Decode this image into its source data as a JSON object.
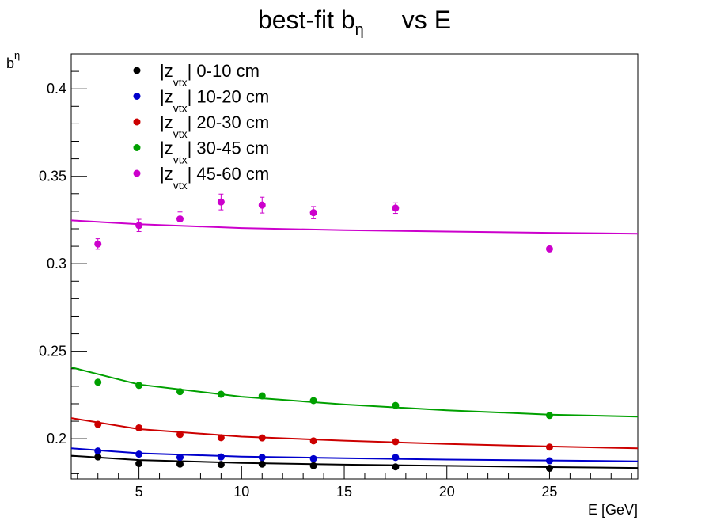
{
  "chart_data": {
    "type": "scatter",
    "title_main": "best-fit  b",
    "title_sub": "η",
    "title_tail": "vs  E",
    "xlabel": "E  [GeV]",
    "ylabel_main": "b",
    "ylabel_sub": "η",
    "xlim": [
      1.7,
      29.3
    ],
    "ylim": [
      0.177,
      0.42
    ],
    "xticks": [
      5,
      10,
      15,
      20,
      25
    ],
    "yticks": [
      0.2,
      0.25,
      0.3,
      0.35,
      0.4
    ],
    "legend_position": "top-left",
    "series": [
      {
        "legend_pre": "|z",
        "legend_sub": "vtx",
        "legend_post": "| 0-10 cm",
        "color": "#000000",
        "x": [
          3,
          5,
          7,
          9,
          11,
          13.5,
          17.5,
          25
        ],
        "y": [
          0.1896,
          0.1858,
          0.1855,
          0.1853,
          0.1855,
          0.1846,
          0.1839,
          0.1831
        ],
        "err": [
          0.0012,
          0.0009,
          0.0009,
          0.0009,
          0.0009,
          0.0009,
          0.0009,
          0.0008
        ],
        "fit": [
          [
            1.7,
            0.1903
          ],
          [
            5,
            0.1878
          ],
          [
            10,
            0.1862
          ],
          [
            15,
            0.1852
          ],
          [
            20,
            0.1845
          ],
          [
            25,
            0.1838
          ],
          [
            29.3,
            0.1833
          ]
        ]
      },
      {
        "legend_pre": "|z",
        "legend_sub": "vtx",
        "legend_post": "| 10-20 cm",
        "color": "#0000cc",
        "x": [
          3,
          5,
          7,
          9,
          11,
          13.5,
          17.5,
          25
        ],
        "y": [
          0.193,
          0.1912,
          0.1894,
          0.1896,
          0.1893,
          0.1886,
          0.1893,
          0.1874
        ],
        "err": [
          0.001,
          0.0009,
          0.0009,
          0.0009,
          0.0009,
          0.0009,
          0.0009,
          0.0008
        ],
        "fit": [
          [
            1.7,
            0.1945
          ],
          [
            5,
            0.1917
          ],
          [
            10,
            0.1898
          ],
          [
            15,
            0.1889
          ],
          [
            20,
            0.1881
          ],
          [
            25,
            0.1876
          ],
          [
            29.3,
            0.1871
          ]
        ]
      },
      {
        "legend_pre": "|z",
        "legend_sub": "vtx",
        "legend_post": "| 20-30 cm",
        "color": "#cc0000",
        "x": [
          3,
          5,
          7,
          9,
          11,
          13.5,
          17.5,
          25
        ],
        "y": [
          0.2082,
          0.2062,
          0.2024,
          0.2006,
          0.2005,
          0.1988,
          0.1983,
          0.1952
        ],
        "err": [
          0.001,
          0.0009,
          0.0009,
          0.0009,
          0.0009,
          0.0009,
          0.001,
          0.0008
        ],
        "fit": [
          [
            1.7,
            0.2118
          ],
          [
            5,
            0.2055
          ],
          [
            10,
            0.2012
          ],
          [
            15,
            0.1989
          ],
          [
            20,
            0.197
          ],
          [
            25,
            0.1956
          ],
          [
            29.3,
            0.1945
          ]
        ]
      },
      {
        "legend_pre": "|z",
        "legend_sub": "vtx",
        "legend_post": "| 30-45 cm",
        "color": "#00a000",
        "x": [
          3,
          5,
          7,
          9,
          11,
          13.5,
          17.5,
          25
        ],
        "y": [
          0.2323,
          0.2305,
          0.2269,
          0.2254,
          0.2245,
          0.2218,
          0.219,
          0.2133
        ],
        "err": [
          0.0012,
          0.0009,
          0.0009,
          0.0009,
          0.0009,
          0.0009,
          0.0009,
          0.0008
        ],
        "fit": [
          [
            1.7,
            0.2408
          ],
          [
            5,
            0.231
          ],
          [
            10,
            0.224
          ],
          [
            15,
            0.2196
          ],
          [
            20,
            0.2163
          ],
          [
            25,
            0.2138
          ],
          [
            29.3,
            0.2126
          ]
        ]
      },
      {
        "legend_pre": "|z",
        "legend_sub": "vtx",
        "legend_post": "| 45-60 cm",
        "color": "#cc00cc",
        "x": [
          3,
          5,
          7,
          9,
          11,
          13.5,
          17.5,
          25
        ],
        "y": [
          0.3113,
          0.3219,
          0.3256,
          0.3353,
          0.3335,
          0.3292,
          0.3318,
          0.3085
        ],
        "err": [
          0.003,
          0.0035,
          0.004,
          0.0045,
          0.0045,
          0.0035,
          0.003,
          0.0008
        ],
        "fit": [
          [
            1.7,
            0.3248
          ],
          [
            5,
            0.3226
          ],
          [
            10,
            0.3204
          ],
          [
            15,
            0.3192
          ],
          [
            20,
            0.3184
          ],
          [
            25,
            0.3177
          ],
          [
            29.3,
            0.3172
          ]
        ]
      }
    ]
  }
}
